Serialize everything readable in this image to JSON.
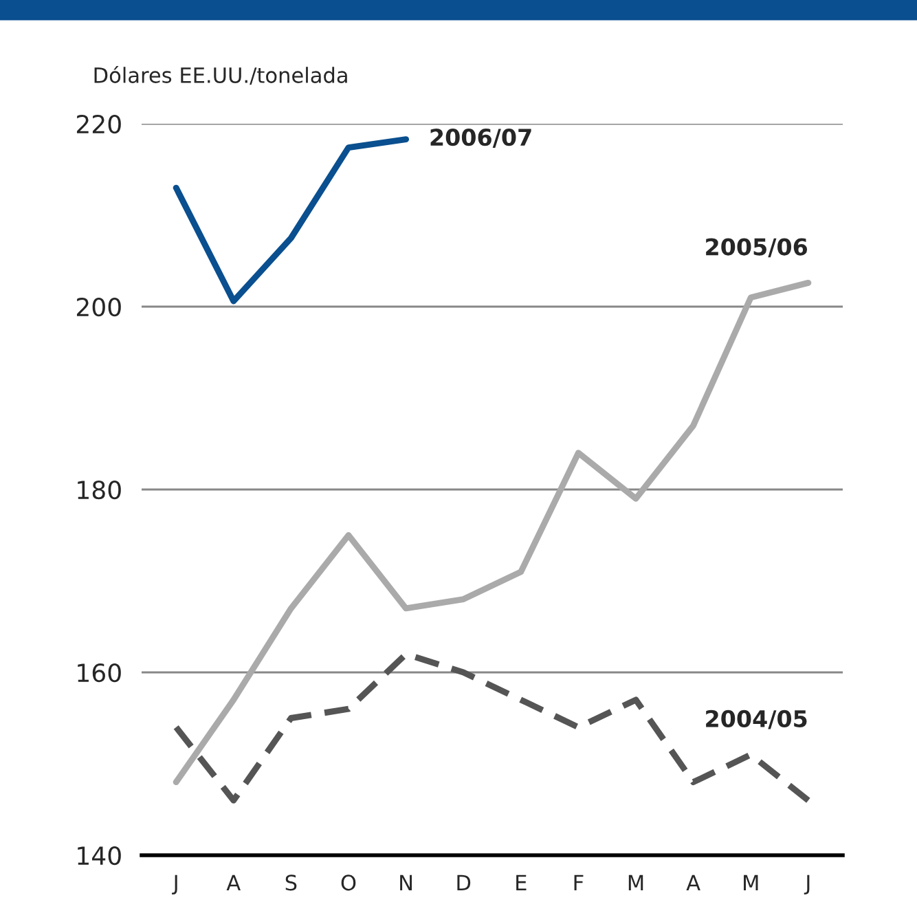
{
  "chart_data": {
    "type": "line",
    "ylabel": "Dólares EE.UU./tonelada",
    "categories": [
      "J",
      "A",
      "S",
      "O",
      "N",
      "D",
      "E",
      "F",
      "M",
      "A",
      "M",
      "J"
    ],
    "series": [
      {
        "name": "2006/07",
        "color": "#0a4f8f",
        "line_style": "solid",
        "values": [
          213,
          200.6,
          207.5,
          217.4,
          218.3,
          null,
          null,
          null,
          null,
          null,
          null,
          null
        ]
      },
      {
        "name": "2005/06",
        "color": "#aaaaaa",
        "line_style": "solid",
        "values": [
          148,
          157,
          167,
          175,
          167,
          168,
          171,
          184,
          179,
          187,
          201,
          202.6
        ]
      },
      {
        "name": "2004/05",
        "color": "#555555",
        "line_style": "dashed",
        "values": [
          154,
          146,
          155,
          156,
          162,
          160,
          157,
          154,
          157,
          148,
          151,
          146
        ]
      }
    ],
    "ylim": [
      140,
      220
    ],
    "yticks": [
      140,
      160,
      180,
      200,
      220
    ],
    "grid": "y"
  }
}
